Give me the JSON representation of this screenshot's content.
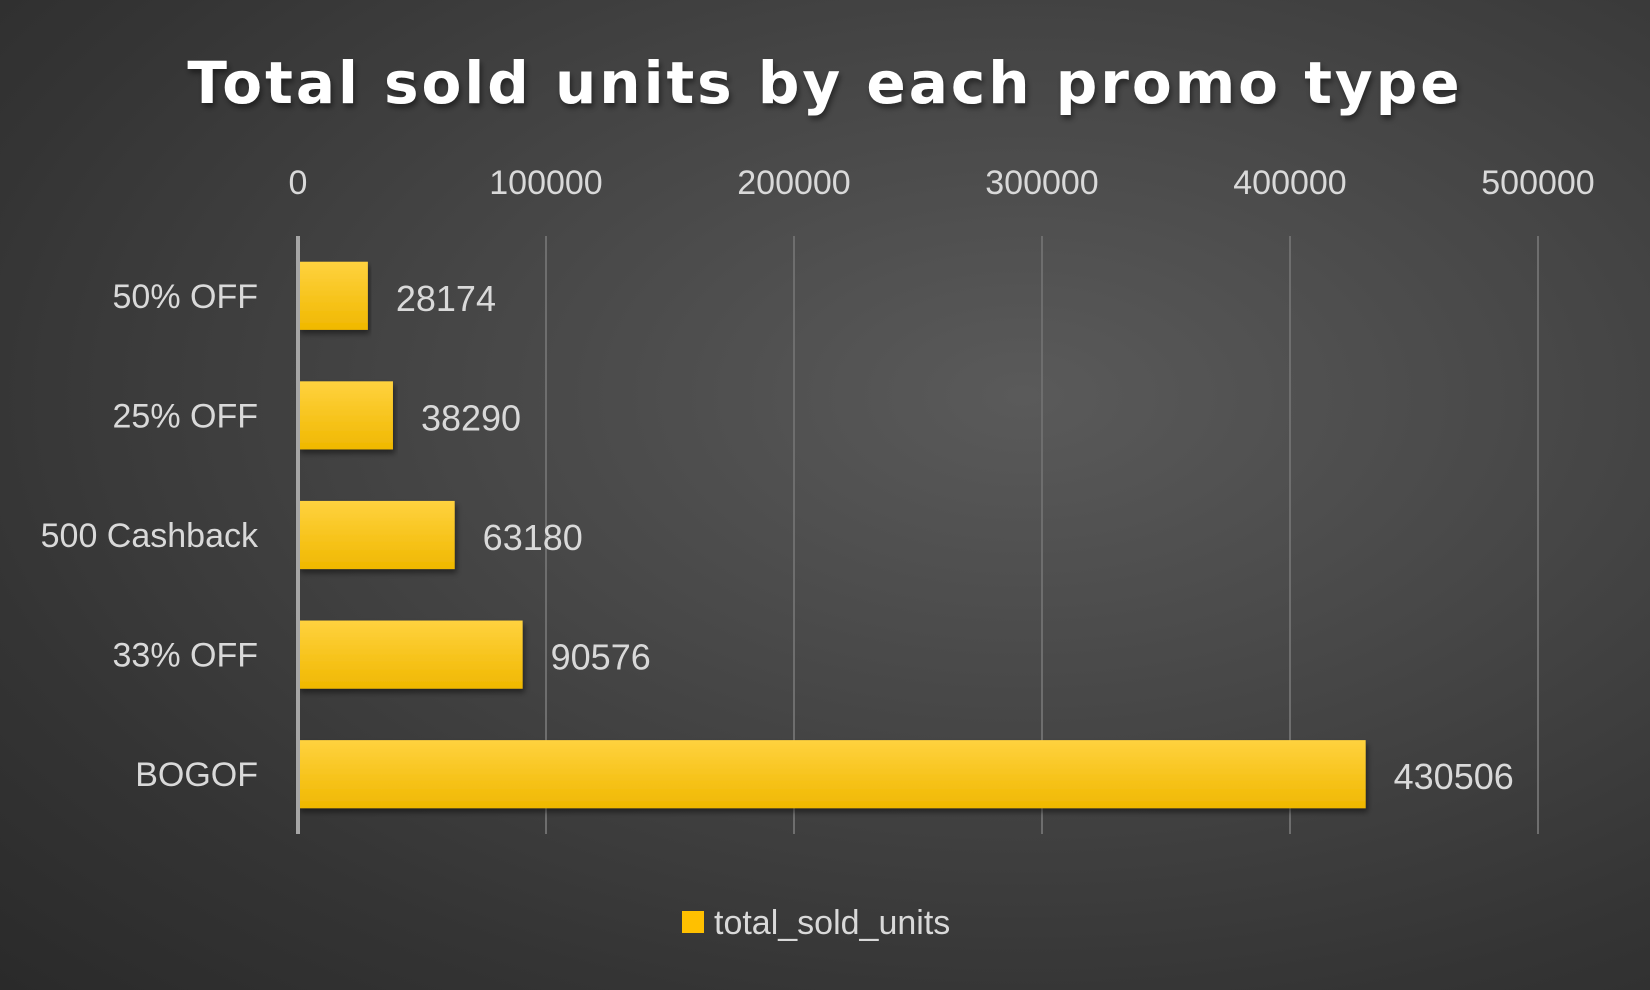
{
  "chart_data": {
    "type": "bar",
    "orientation": "horizontal",
    "title": "Total sold units by each promo type",
    "categories": [
      "50% OFF",
      "25% OFF",
      "500 Cashback",
      "33% OFF",
      "BOGOF"
    ],
    "series": [
      {
        "name": "total_sold_units",
        "values": [
          28174,
          38290,
          63180,
          90576,
          430506
        ],
        "color": "#ffc000"
      }
    ],
    "xlim": [
      0,
      500000
    ],
    "xticks": [
      "0",
      "100000",
      "200000",
      "300000",
      "400000",
      "500000"
    ],
    "x_axis_position": "top",
    "grid": true,
    "legend_position": "bottom",
    "data_labels": true,
    "colors": {
      "background": "#404040",
      "bar": "#ffc000",
      "text": "#d9d9d9",
      "title": "#ffffff"
    }
  }
}
